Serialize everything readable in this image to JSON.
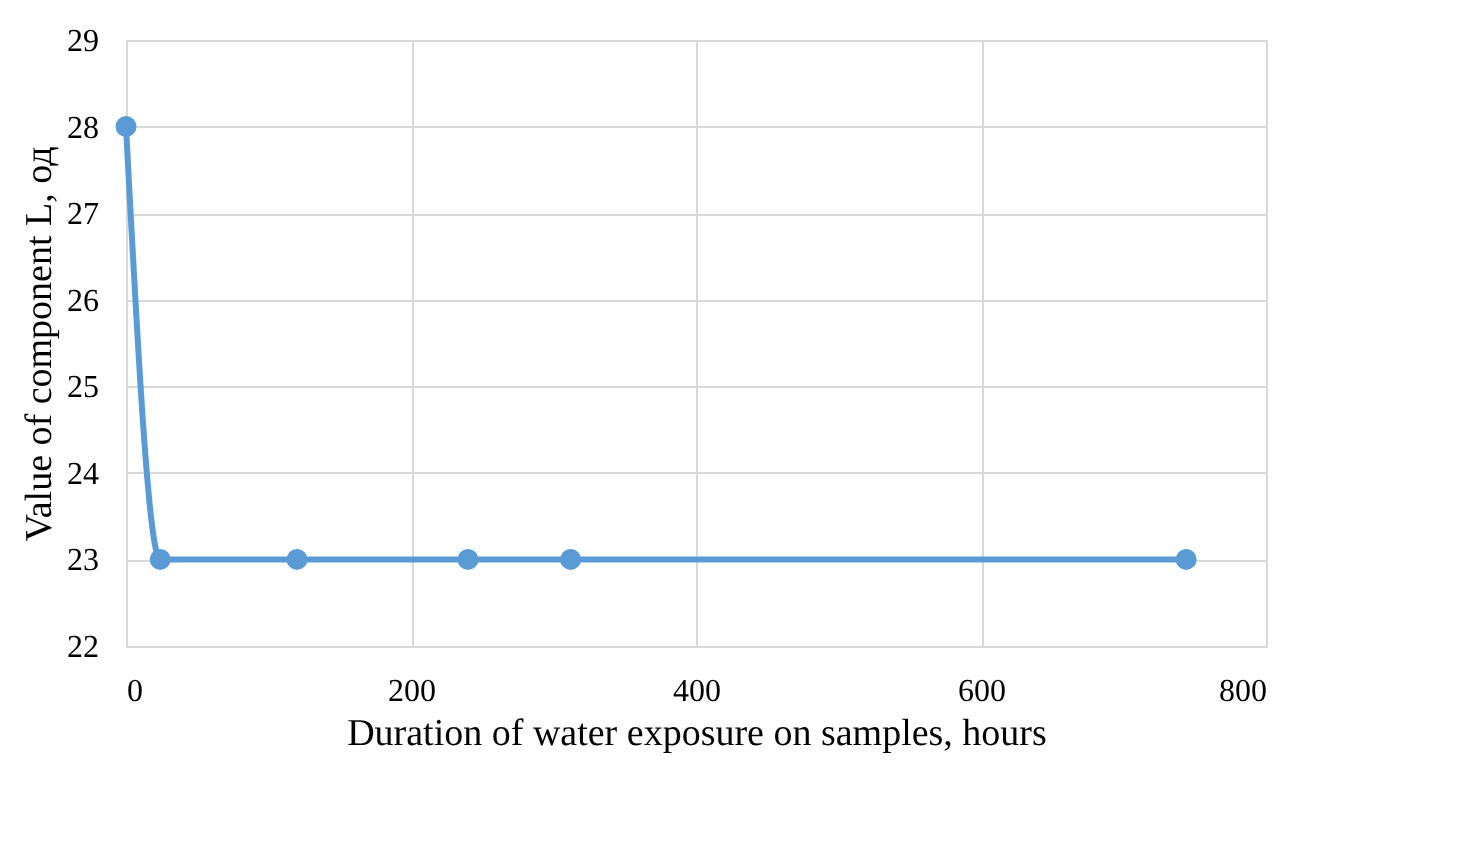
{
  "chart_data": {
    "type": "line",
    "xlabel": "Duration of water exposure on samples, hours",
    "ylabel": "Value of component L, од",
    "x": [
      0,
      24,
      120,
      240,
      312,
      744
    ],
    "series": [
      {
        "color": "#5b9bd5",
        "values": [
          28,
          23,
          23,
          23,
          23,
          23
        ]
      }
    ],
    "xlim": [
      0,
      800
    ],
    "xticks": [
      0,
      200,
      400,
      600,
      800
    ],
    "ylim": [
      22,
      29
    ],
    "yticks": [
      22,
      23,
      24,
      25,
      26,
      27,
      28,
      29
    ],
    "grid": true,
    "marker": "circle",
    "line_style": "solid"
  }
}
